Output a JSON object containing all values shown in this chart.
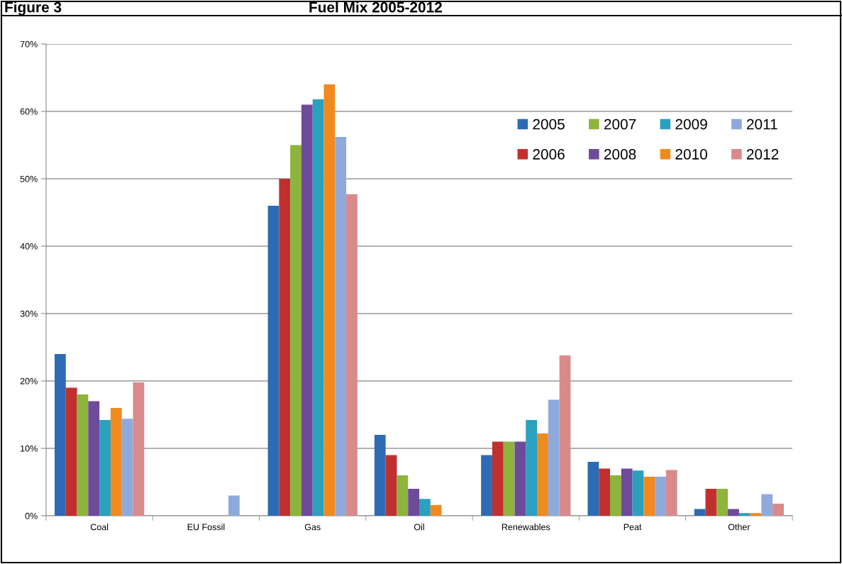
{
  "chart_data": {
    "type": "bar",
    "title": "Fuel Mix 2005-2012",
    "annotations": [
      "Figure 3"
    ],
    "categories": [
      "Coal",
      "EU Fossil",
      "Gas",
      "Oil",
      "Renewables",
      "Peat",
      "Other"
    ],
    "series": [
      {
        "name": "2005",
        "color": "#2e6bb5",
        "values": [
          24,
          0,
          46,
          12,
          9,
          8,
          1
        ]
      },
      {
        "name": "2006",
        "color": "#c0302e",
        "values": [
          19,
          0,
          50,
          9,
          11,
          7,
          4
        ]
      },
      {
        "name": "2007",
        "color": "#8db43c",
        "values": [
          18,
          0,
          55,
          6,
          11,
          6,
          4
        ]
      },
      {
        "name": "2008",
        "color": "#6e4a9a",
        "values": [
          17,
          0,
          61,
          4,
          11,
          7,
          1
        ]
      },
      {
        "name": "2009",
        "color": "#2ba0bf",
        "values": [
          14.2,
          0,
          61.8,
          2.5,
          14.2,
          6.7,
          0.4
        ]
      },
      {
        "name": "2010",
        "color": "#f08a1e",
        "values": [
          16,
          0,
          64,
          1.6,
          12.2,
          5.8,
          0.4
        ]
      },
      {
        "name": "2011",
        "color": "#8eaadc",
        "values": [
          14.4,
          3,
          56.2,
          0,
          17.2,
          5.8,
          3.2
        ]
      },
      {
        "name": "2012",
        "color": "#d98a8a",
        "values": [
          19.8,
          0,
          47.7,
          0,
          23.8,
          6.8,
          1.8
        ]
      }
    ],
    "ylim": [
      0,
      70
    ],
    "yticks": [
      {
        "value": 0,
        "label": "0%"
      },
      {
        "value": 10,
        "label": "10%"
      },
      {
        "value": 20,
        "label": "20%"
      },
      {
        "value": 30,
        "label": "30%"
      },
      {
        "value": 40,
        "label": "40%"
      },
      {
        "value": 50,
        "label": "50%"
      },
      {
        "value": 60,
        "label": "60%"
      },
      {
        "value": 70,
        "label": "70%"
      }
    ],
    "grid": "y",
    "legend": "top right"
  }
}
